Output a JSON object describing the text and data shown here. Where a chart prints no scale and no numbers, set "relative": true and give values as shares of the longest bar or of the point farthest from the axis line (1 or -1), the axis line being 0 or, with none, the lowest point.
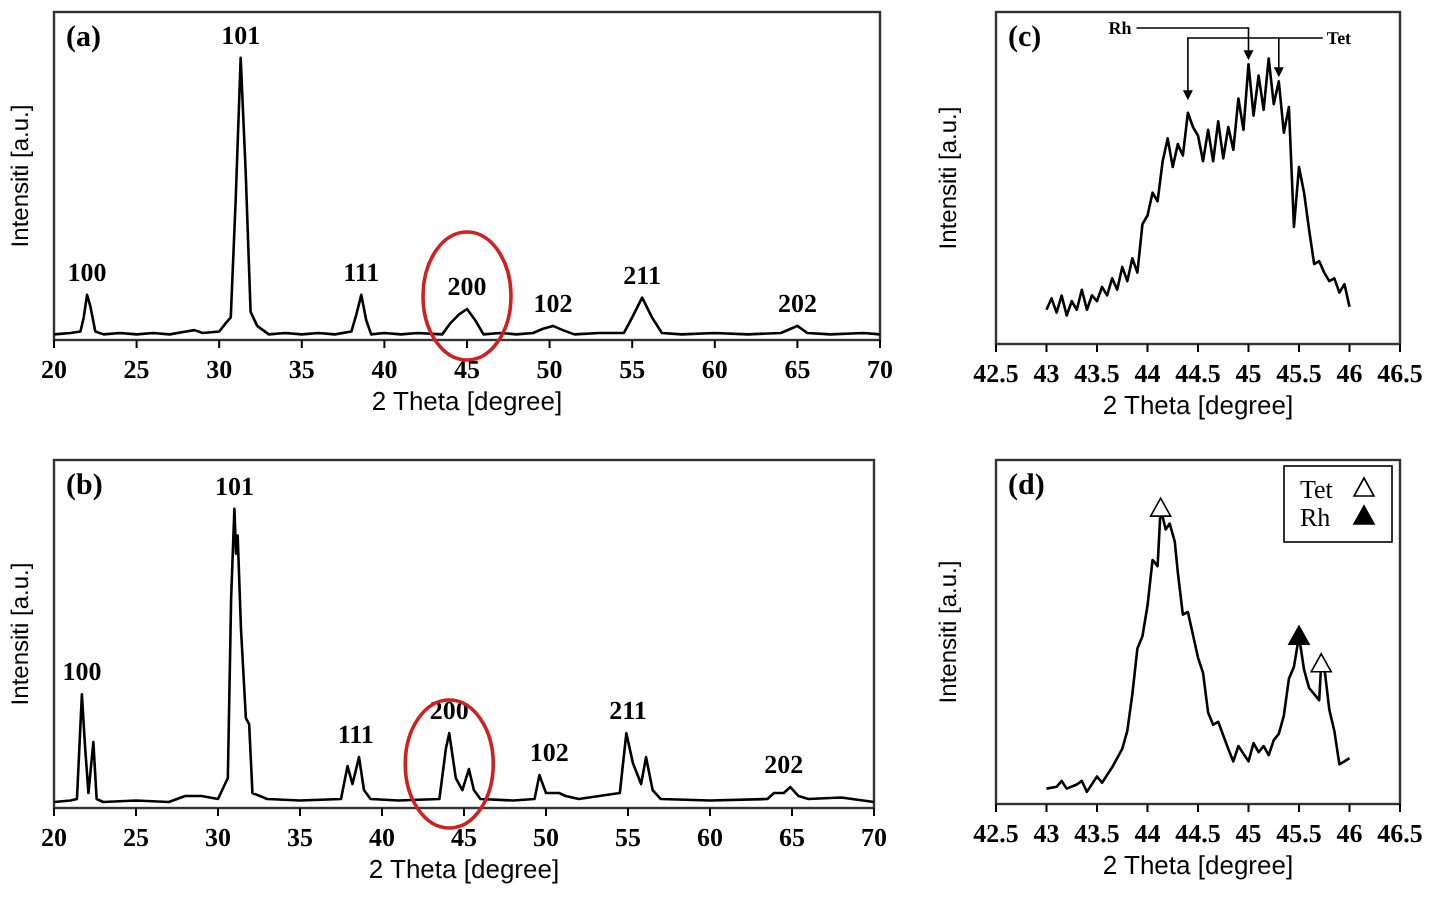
{
  "chart_data": [
    {
      "type": "line",
      "xlabel": "2 Theta [degree]",
      "ylabel": "Intensiti [a.u.]",
      "relative": true,
      "xlim": [
        20,
        70
      ],
      "xticks": [
        20,
        25,
        30,
        35,
        40,
        45,
        50,
        55,
        60,
        65,
        70
      ],
      "x": [
        20,
        21,
        21.6,
        21.8,
        22,
        22.2,
        22.5,
        23,
        24,
        25,
        26,
        27,
        28,
        28.5,
        29,
        30,
        30.4,
        30.7,
        31,
        31.3,
        31.6,
        31.9,
        32.3,
        33,
        34,
        35,
        36,
        37,
        38,
        38.3,
        38.6,
        38.9,
        39.2,
        40,
        41,
        42,
        43.5,
        44,
        44.5,
        45,
        45.5,
        46,
        47,
        48,
        49,
        49.6,
        50.2,
        50.8,
        51.5,
        53,
        54.5,
        55,
        55.6,
        56.2,
        56.8,
        58,
        60,
        62,
        64,
        64.6,
        65,
        65.6,
        67,
        69,
        70
      ],
      "series": [
        {
          "color": "#000000",
          "values": [
            0.02,
            0.025,
            0.03,
            0.08,
            0.16,
            0.12,
            0.03,
            0.02,
            0.025,
            0.02,
            0.025,
            0.02,
            0.03,
            0.035,
            0.025,
            0.03,
            0.06,
            0.08,
            0.5,
            1,
            0.6,
            0.1,
            0.05,
            0.02,
            0.025,
            0.02,
            0.025,
            0.02,
            0.03,
            0.09,
            0.16,
            0.07,
            0.02,
            0.025,
            0.02,
            0.025,
            0.02,
            0.06,
            0.09,
            0.11,
            0.07,
            0.02,
            0.025,
            0.02,
            0.025,
            0.04,
            0.05,
            0.035,
            0.02,
            0.025,
            0.025,
            0.08,
            0.15,
            0.08,
            0.025,
            0.02,
            0.025,
            0.02,
            0.025,
            0.04,
            0.05,
            0.025,
            0.02,
            0.025,
            0.02
          ]
        }
      ],
      "annotations": [
        "(a)",
        {
          "text": "100",
          "x": 22,
          "y": 0.16
        },
        {
          "text": "101",
          "x": 31.3,
          "y": 1
        },
        {
          "text": "111",
          "x": 38.6,
          "y": 0.16
        },
        {
          "text": "200",
          "x": 45,
          "y": 0.11
        },
        {
          "text": "102",
          "x": 50.2,
          "y": 0.05
        },
        {
          "text": "211",
          "x": 55.6,
          "y": 0.15
        },
        {
          "text": "202",
          "x": 65,
          "y": 0.05
        }
      ]
    },
    {
      "type": "line",
      "xlabel": "2 Theta [degree]",
      "ylabel": "Intensiti [a.u.]",
      "relative": true,
      "xlim": [
        20,
        70
      ],
      "xticks": [
        20,
        25,
        30,
        35,
        40,
        45,
        50,
        55,
        60,
        65,
        70
      ],
      "x": [
        20,
        21,
        21.4,
        21.7,
        21.9,
        22.1,
        22.4,
        22.6,
        23,
        25,
        27,
        27.5,
        28,
        29,
        30,
        30.6,
        30.8,
        31,
        31.1,
        31.2,
        31.4,
        31.7,
        31.9,
        32.1,
        33,
        35,
        37.5,
        37.9,
        38.2,
        38.6,
        38.9,
        39.3,
        41,
        43.5,
        43.9,
        44.1,
        44.5,
        44.9,
        45.3,
        45.6,
        46,
        48,
        49.3,
        49.6,
        50,
        50.8,
        51.2,
        52,
        54.5,
        54.9,
        55.3,
        55.8,
        56.1,
        56.5,
        57,
        60,
        63.5,
        63.9,
        64.5,
        64.9,
        65.4,
        66,
        68,
        70
      ],
      "series": [
        {
          "color": "#000000",
          "values": [
            0.02,
            0.025,
            0.03,
            0.38,
            0.2,
            0.05,
            0.22,
            0.03,
            0.02,
            0.025,
            0.02,
            0.03,
            0.04,
            0.04,
            0.03,
            0.1,
            0.7,
            1,
            0.85,
            0.91,
            0.6,
            0.3,
            0.28,
            0.05,
            0.03,
            0.025,
            0.03,
            0.14,
            0.08,
            0.17,
            0.06,
            0.03,
            0.025,
            0.03,
            0.2,
            0.25,
            0.1,
            0.06,
            0.13,
            0.06,
            0.03,
            0.025,
            0.03,
            0.11,
            0.05,
            0.05,
            0.04,
            0.03,
            0.05,
            0.25,
            0.15,
            0.08,
            0.17,
            0.06,
            0.03,
            0.025,
            0.03,
            0.05,
            0.05,
            0.07,
            0.04,
            0.03,
            0.035,
            0.02
          ]
        }
      ],
      "annotations": [
        "(b)",
        {
          "text": "100",
          "x": 21.7,
          "y": 0.38
        },
        {
          "text": "101",
          "x": 31,
          "y": 1
        },
        {
          "text": "111",
          "x": 38.4,
          "y": 0.17
        },
        {
          "text": "200",
          "x": 44.1,
          "y": 0.25
        },
        {
          "text": "102",
          "x": 50.2,
          "y": 0.11
        },
        {
          "text": "211",
          "x": 55,
          "y": 0.25
        },
        {
          "text": "202",
          "x": 64.5,
          "y": 0.07
        }
      ]
    },
    {
      "type": "line",
      "xlabel": "2 Theta [degree]",
      "ylabel": "Intensiti [a.u.]",
      "relative": true,
      "xlim": [
        42.5,
        46.5
      ],
      "xticks": [
        42.5,
        43,
        43.5,
        44,
        44.5,
        45,
        45.5,
        46,
        46.5
      ],
      "x": [
        43,
        43.05,
        43.1,
        43.15,
        43.2,
        43.25,
        43.3,
        43.35,
        43.4,
        43.45,
        43.5,
        43.55,
        43.6,
        43.65,
        43.7,
        43.75,
        43.8,
        43.85,
        43.9,
        43.95,
        44,
        44.05,
        44.1,
        44.15,
        44.2,
        44.25,
        44.3,
        44.35,
        44.4,
        44.45,
        44.5,
        44.55,
        44.6,
        44.65,
        44.7,
        44.75,
        44.8,
        44.85,
        44.9,
        44.95,
        45,
        45.05,
        45.1,
        45.15,
        45.2,
        45.25,
        45.3,
        45.35,
        45.4,
        45.45,
        45.5,
        45.55,
        45.6,
        45.65,
        45.7,
        45.75,
        45.8,
        45.85,
        45.9,
        45.95,
        46
      ],
      "series": [
        {
          "color": "#000000",
          "values": [
            0.12,
            0.16,
            0.11,
            0.17,
            0.1,
            0.15,
            0.12,
            0.19,
            0.12,
            0.17,
            0.15,
            0.2,
            0.17,
            0.23,
            0.19,
            0.27,
            0.22,
            0.3,
            0.25,
            0.42,
            0.45,
            0.53,
            0.5,
            0.64,
            0.72,
            0.62,
            0.7,
            0.66,
            0.81,
            0.76,
            0.73,
            0.64,
            0.75,
            0.64,
            0.78,
            0.65,
            0.76,
            0.68,
            0.86,
            0.75,
            0.98,
            0.8,
            0.94,
            0.82,
            1,
            0.84,
            0.92,
            0.74,
            0.83,
            0.41,
            0.62,
            0.53,
            0.4,
            0.28,
            0.29,
            0.25,
            0.22,
            0.23,
            0.18,
            0.21,
            0.13
          ]
        }
      ],
      "annotations": [
        "(c)",
        {
          "text": "Rh",
          "x": 45,
          "y": 0.98
        },
        {
          "text": "Tet",
          "x": 45.3,
          "y": 0.92
        }
      ]
    },
    {
      "type": "line",
      "xlabel": "2 Theta [degree]",
      "ylabel": "Intensiti [a.u.]",
      "relative": true,
      "xlim": [
        42.5,
        46.5
      ],
      "xticks": [
        42.5,
        43,
        43.5,
        44,
        44.5,
        45,
        45.5,
        46,
        46.5
      ],
      "legend": "top right",
      "series": [
        {
          "color": "#000000",
          "x": [
            43,
            43.1,
            43.15,
            43.2,
            43.3,
            43.35,
            43.4,
            43.5,
            43.55,
            43.65,
            43.75,
            43.8,
            43.85,
            43.9,
            43.95,
            44,
            44.05,
            44.1,
            44.13,
            44.18,
            44.22,
            44.27,
            44.3,
            44.35,
            44.4,
            44.5,
            44.55,
            44.6,
            44.65,
            44.7,
            44.8,
            44.85,
            44.9,
            45,
            45.05,
            45.1,
            45.15,
            45.2,
            45.25,
            45.3,
            45.35,
            45.4,
            45.45,
            45.5,
            45.55,
            45.6,
            45.7,
            45.72,
            45.75,
            45.8,
            45.85,
            45.9,
            45.95,
            46
          ],
          "values": [
            0.052,
            0.058,
            0.078,
            0.052,
            0.066,
            0.078,
            0.041,
            0.093,
            0.072,
            0.124,
            0.186,
            0.247,
            0.371,
            0.526,
            0.567,
            0.67,
            0.825,
            0.804,
            1,
            0.928,
            0.948,
            0.887,
            0.784,
            0.64,
            0.649,
            0.495,
            0.443,
            0.309,
            0.268,
            0.278,
            0.186,
            0.144,
            0.196,
            0.144,
            0.206,
            0.175,
            0.196,
            0.165,
            0.216,
            0.237,
            0.299,
            0.423,
            0.464,
            0.567,
            0.454,
            0.392,
            0.351,
            0.474,
            0.464,
            0.319,
            0.247,
            0.134,
            0.144,
            0.155
          ]
        },
        {
          "type": "scatter",
          "name": "Tet",
          "color": "#ffffff",
          "marker": "triangle",
          "x": [
            44.13,
            45.72
          ],
          "values": [
            1,
            0.474
          ]
        },
        {
          "type": "scatter",
          "name": "Rh",
          "color": "#000000",
          "marker": "triangle",
          "x": [
            45.5
          ],
          "values": [
            0.567
          ]
        }
      ],
      "annotations": [
        "(d)"
      ]
    }
  ]
}
